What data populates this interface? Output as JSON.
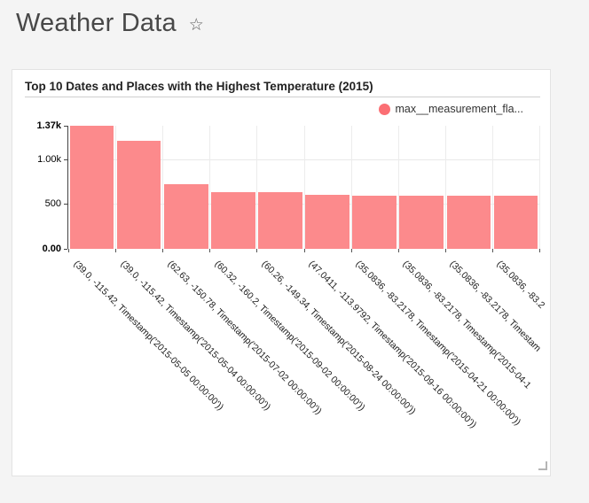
{
  "page": {
    "title": "Weather Data",
    "star_icon": "☆"
  },
  "card": {
    "title": "Top 10 Dates and Places with the Highest Temperature (2015)",
    "legend": {
      "label": "max__measurement_fla...",
      "color": "#fb6f74"
    }
  },
  "chart_data": {
    "type": "bar",
    "title": "Top 10 Dates and Places with the Highest Temperature (2015)",
    "xlabel": "",
    "ylabel": "",
    "ylim": [
      0,
      1370
    ],
    "grid": true,
    "legend_position": "top-right",
    "x_label_rotation": 45,
    "bar_color": "#fc8a8c",
    "series_name": "max__measurement_fla...",
    "categories": [
      "(39.0, -115.42, Timestamp('2015-05-05 00:00:00'))",
      "(39.0, -115.42, Timestamp('2015-05-04 00:00:00'))",
      "(62.63, -150.78, Timestamp('2015-07-02 00:00:00'))",
      "(60.32, -160.2, Timestamp('2015-09-02 00:00:00'))",
      "(60.26, -149.34, Timestamp('2015-08-24 00:00:00'))",
      "(47.0411, -113.9792, Timestamp('2015-09-16 00:00:00'))",
      "(35.0836, -83.2178, Timestamp('2015-04-21 00:00:00'))",
      "(35.0836, -83.2178, Timestamp('2015-04-1",
      "(35.0836, -83.2178, Timestam",
      "(35.0836, -83.2"
    ],
    "values": [
      1370,
      1205,
      720,
      635,
      630,
      600,
      593,
      593,
      593,
      593
    ],
    "yticks": [
      {
        "label": "1.37k",
        "value": 1370,
        "bold": true
      },
      {
        "label": "1.00k",
        "value": 1000,
        "bold": false
      },
      {
        "label": "500",
        "value": 500,
        "bold": false
      },
      {
        "label": "0.00",
        "value": 0,
        "bold": true
      }
    ]
  }
}
